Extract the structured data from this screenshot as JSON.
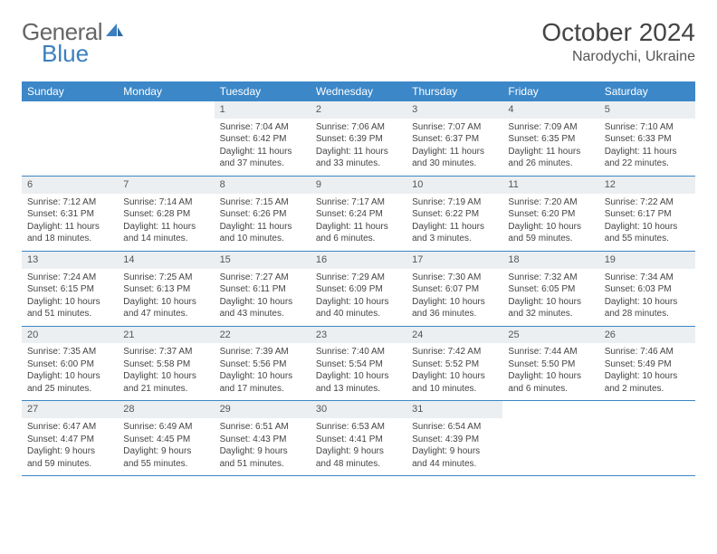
{
  "brand": {
    "part1": "General",
    "part2": "Blue"
  },
  "title": "October 2024",
  "location": "Narodychi, Ukraine",
  "colors": {
    "header_bg": "#3b87c8",
    "header_text": "#ffffff",
    "daynum_bg": "#eceff1",
    "rule": "#3b87c8",
    "text": "#444444",
    "brand_gray": "#666666",
    "brand_blue": "#3a7fbf"
  },
  "weekdays": [
    "Sunday",
    "Monday",
    "Tuesday",
    "Wednesday",
    "Thursday",
    "Friday",
    "Saturday"
  ],
  "weeks": [
    [
      {
        "n": "",
        "sunrise": "",
        "sunset": "",
        "daylight": ""
      },
      {
        "n": "",
        "sunrise": "",
        "sunset": "",
        "daylight": ""
      },
      {
        "n": "1",
        "sunrise": "Sunrise: 7:04 AM",
        "sunset": "Sunset: 6:42 PM",
        "daylight": "Daylight: 11 hours and 37 minutes."
      },
      {
        "n": "2",
        "sunrise": "Sunrise: 7:06 AM",
        "sunset": "Sunset: 6:39 PM",
        "daylight": "Daylight: 11 hours and 33 minutes."
      },
      {
        "n": "3",
        "sunrise": "Sunrise: 7:07 AM",
        "sunset": "Sunset: 6:37 PM",
        "daylight": "Daylight: 11 hours and 30 minutes."
      },
      {
        "n": "4",
        "sunrise": "Sunrise: 7:09 AM",
        "sunset": "Sunset: 6:35 PM",
        "daylight": "Daylight: 11 hours and 26 minutes."
      },
      {
        "n": "5",
        "sunrise": "Sunrise: 7:10 AM",
        "sunset": "Sunset: 6:33 PM",
        "daylight": "Daylight: 11 hours and 22 minutes."
      }
    ],
    [
      {
        "n": "6",
        "sunrise": "Sunrise: 7:12 AM",
        "sunset": "Sunset: 6:31 PM",
        "daylight": "Daylight: 11 hours and 18 minutes."
      },
      {
        "n": "7",
        "sunrise": "Sunrise: 7:14 AM",
        "sunset": "Sunset: 6:28 PM",
        "daylight": "Daylight: 11 hours and 14 minutes."
      },
      {
        "n": "8",
        "sunrise": "Sunrise: 7:15 AM",
        "sunset": "Sunset: 6:26 PM",
        "daylight": "Daylight: 11 hours and 10 minutes."
      },
      {
        "n": "9",
        "sunrise": "Sunrise: 7:17 AM",
        "sunset": "Sunset: 6:24 PM",
        "daylight": "Daylight: 11 hours and 6 minutes."
      },
      {
        "n": "10",
        "sunrise": "Sunrise: 7:19 AM",
        "sunset": "Sunset: 6:22 PM",
        "daylight": "Daylight: 11 hours and 3 minutes."
      },
      {
        "n": "11",
        "sunrise": "Sunrise: 7:20 AM",
        "sunset": "Sunset: 6:20 PM",
        "daylight": "Daylight: 10 hours and 59 minutes."
      },
      {
        "n": "12",
        "sunrise": "Sunrise: 7:22 AM",
        "sunset": "Sunset: 6:17 PM",
        "daylight": "Daylight: 10 hours and 55 minutes."
      }
    ],
    [
      {
        "n": "13",
        "sunrise": "Sunrise: 7:24 AM",
        "sunset": "Sunset: 6:15 PM",
        "daylight": "Daylight: 10 hours and 51 minutes."
      },
      {
        "n": "14",
        "sunrise": "Sunrise: 7:25 AM",
        "sunset": "Sunset: 6:13 PM",
        "daylight": "Daylight: 10 hours and 47 minutes."
      },
      {
        "n": "15",
        "sunrise": "Sunrise: 7:27 AM",
        "sunset": "Sunset: 6:11 PM",
        "daylight": "Daylight: 10 hours and 43 minutes."
      },
      {
        "n": "16",
        "sunrise": "Sunrise: 7:29 AM",
        "sunset": "Sunset: 6:09 PM",
        "daylight": "Daylight: 10 hours and 40 minutes."
      },
      {
        "n": "17",
        "sunrise": "Sunrise: 7:30 AM",
        "sunset": "Sunset: 6:07 PM",
        "daylight": "Daylight: 10 hours and 36 minutes."
      },
      {
        "n": "18",
        "sunrise": "Sunrise: 7:32 AM",
        "sunset": "Sunset: 6:05 PM",
        "daylight": "Daylight: 10 hours and 32 minutes."
      },
      {
        "n": "19",
        "sunrise": "Sunrise: 7:34 AM",
        "sunset": "Sunset: 6:03 PM",
        "daylight": "Daylight: 10 hours and 28 minutes."
      }
    ],
    [
      {
        "n": "20",
        "sunrise": "Sunrise: 7:35 AM",
        "sunset": "Sunset: 6:00 PM",
        "daylight": "Daylight: 10 hours and 25 minutes."
      },
      {
        "n": "21",
        "sunrise": "Sunrise: 7:37 AM",
        "sunset": "Sunset: 5:58 PM",
        "daylight": "Daylight: 10 hours and 21 minutes."
      },
      {
        "n": "22",
        "sunrise": "Sunrise: 7:39 AM",
        "sunset": "Sunset: 5:56 PM",
        "daylight": "Daylight: 10 hours and 17 minutes."
      },
      {
        "n": "23",
        "sunrise": "Sunrise: 7:40 AM",
        "sunset": "Sunset: 5:54 PM",
        "daylight": "Daylight: 10 hours and 13 minutes."
      },
      {
        "n": "24",
        "sunrise": "Sunrise: 7:42 AM",
        "sunset": "Sunset: 5:52 PM",
        "daylight": "Daylight: 10 hours and 10 minutes."
      },
      {
        "n": "25",
        "sunrise": "Sunrise: 7:44 AM",
        "sunset": "Sunset: 5:50 PM",
        "daylight": "Daylight: 10 hours and 6 minutes."
      },
      {
        "n": "26",
        "sunrise": "Sunrise: 7:46 AM",
        "sunset": "Sunset: 5:49 PM",
        "daylight": "Daylight: 10 hours and 2 minutes."
      }
    ],
    [
      {
        "n": "27",
        "sunrise": "Sunrise: 6:47 AM",
        "sunset": "Sunset: 4:47 PM",
        "daylight": "Daylight: 9 hours and 59 minutes."
      },
      {
        "n": "28",
        "sunrise": "Sunrise: 6:49 AM",
        "sunset": "Sunset: 4:45 PM",
        "daylight": "Daylight: 9 hours and 55 minutes."
      },
      {
        "n": "29",
        "sunrise": "Sunrise: 6:51 AM",
        "sunset": "Sunset: 4:43 PM",
        "daylight": "Daylight: 9 hours and 51 minutes."
      },
      {
        "n": "30",
        "sunrise": "Sunrise: 6:53 AM",
        "sunset": "Sunset: 4:41 PM",
        "daylight": "Daylight: 9 hours and 48 minutes."
      },
      {
        "n": "31",
        "sunrise": "Sunrise: 6:54 AM",
        "sunset": "Sunset: 4:39 PM",
        "daylight": "Daylight: 9 hours and 44 minutes."
      },
      {
        "n": "",
        "sunrise": "",
        "sunset": "",
        "daylight": ""
      },
      {
        "n": "",
        "sunrise": "",
        "sunset": "",
        "daylight": ""
      }
    ]
  ]
}
